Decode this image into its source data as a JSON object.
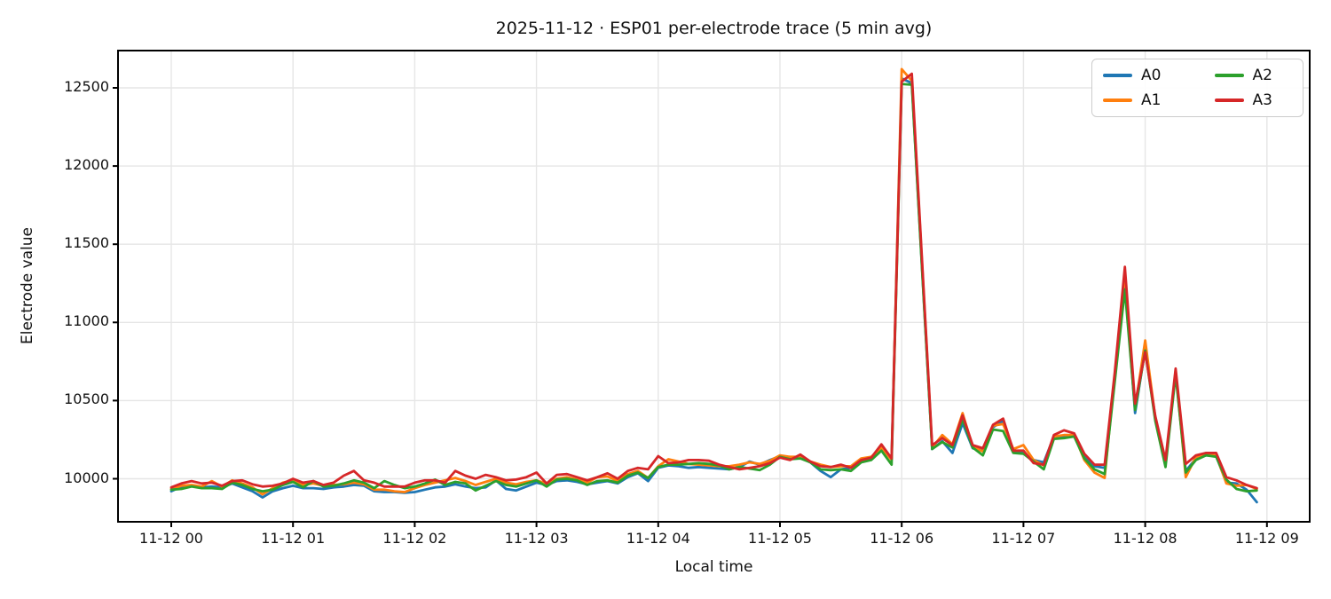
{
  "chart_data": {
    "type": "line",
    "title": "2025-11-12 · ESP01 per-electrode trace (5 min avg)",
    "xlabel": "Local time",
    "ylabel": "Electrode value",
    "grid": true,
    "legend_position": "upper right, 2 columns",
    "x_tick_labels": [
      "11-12 00",
      "11-12 01",
      "11-12 02",
      "11-12 03",
      "11-12 04",
      "11-12 05",
      "11-12 06",
      "11-12 07",
      "11-12 08",
      "11-12 09"
    ],
    "x_tick_minutes": [
      0,
      60,
      120,
      180,
      240,
      300,
      360,
      420,
      480,
      540
    ],
    "y_ticks": [
      10000,
      10500,
      11000,
      11500,
      12000,
      12500
    ],
    "ylim": [
      9725,
      12740
    ],
    "xlim_minutes": [
      -26,
      561
    ],
    "colors": {
      "grid": "#e6e6e6",
      "spine": "#000000",
      "text": "#111111"
    },
    "x_minutes": [
      0,
      5,
      10,
      15,
      20,
      25,
      30,
      35,
      40,
      45,
      50,
      55,
      60,
      65,
      70,
      75,
      80,
      85,
      90,
      95,
      100,
      105,
      110,
      115,
      120,
      125,
      130,
      135,
      140,
      145,
      150,
      155,
      160,
      165,
      170,
      175,
      180,
      185,
      190,
      195,
      200,
      205,
      210,
      215,
      220,
      225,
      230,
      235,
      240,
      245,
      250,
      255,
      260,
      265,
      270,
      275,
      280,
      285,
      290,
      295,
      300,
      305,
      310,
      315,
      320,
      325,
      330,
      335,
      340,
      345,
      350,
      355,
      360,
      365,
      370,
      375,
      380,
      385,
      390,
      395,
      400,
      405,
      410,
      415,
      420,
      425,
      430,
      435,
      440,
      445,
      450,
      455,
      460,
      465,
      470,
      475,
      480,
      485,
      490,
      495,
      500,
      505,
      510,
      515,
      520,
      525,
      530,
      535
    ],
    "series": [
      {
        "name": "A0",
        "color": "#1f77b4",
        "values": [
          9920,
          9950,
          9955,
          9945,
          9950,
          9945,
          9970,
          9945,
          9920,
          9880,
          9920,
          9940,
          9955,
          9940,
          9940,
          9935,
          9945,
          9950,
          9960,
          9955,
          9920,
          9915,
          9915,
          9910,
          9915,
          9930,
          9945,
          9950,
          9965,
          9950,
          9940,
          9945,
          9990,
          9935,
          9925,
          9950,
          9975,
          9960,
          9985,
          9990,
          9980,
          9965,
          9975,
          9985,
          9970,
          10010,
          10035,
          9985,
          10070,
          10085,
          10080,
          10070,
          10075,
          10070,
          10065,
          10060,
          10075,
          10110,
          10090,
          10120,
          10145,
          10130,
          10135,
          10105,
          10050,
          10010,
          10060,
          10070,
          10110,
          10135,
          10185,
          10140,
          12560,
          12530,
          11350,
          10190,
          10240,
          10165,
          10355,
          10195,
          10180,
          10330,
          10370,
          10170,
          10165,
          10120,
          10105,
          10270,
          10270,
          10275,
          10140,
          10080,
          10070,
          10650,
          11280,
          10420,
          10830,
          10380,
          10095,
          10680,
          10050,
          10130,
          10150,
          10145,
          9975,
          9970,
          9930,
          9850
        ]
      },
      {
        "name": "A1",
        "color": "#ff7f0e",
        "values": [
          9935,
          9955,
          9960,
          9950,
          9985,
          9950,
          9990,
          9970,
          9945,
          9900,
          9940,
          9975,
          9990,
          9960,
          9970,
          9955,
          9960,
          9965,
          9975,
          9965,
          9930,
          9930,
          9920,
          9915,
          9940,
          9960,
          9975,
          9990,
          10005,
          9985,
          9960,
          9980,
          10000,
          9975,
          9965,
          9980,
          9990,
          9970,
          10000,
          10010,
          9995,
          9975,
          10010,
          10015,
          9985,
          10030,
          10050,
          10005,
          10080,
          10125,
          10110,
          10095,
          10090,
          10085,
          10080,
          10080,
          10090,
          10105,
          10095,
          10115,
          10150,
          10140,
          10140,
          10110,
          10090,
          10075,
          10080,
          10080,
          10130,
          10140,
          10200,
          10120,
          12620,
          12545,
          11380,
          10200,
          10280,
          10220,
          10420,
          10205,
          10175,
          10340,
          10350,
          10190,
          10215,
          10120,
          10085,
          10270,
          10280,
          10280,
          10120,
          10040,
          10005,
          10660,
          11320,
          10450,
          10885,
          10390,
          10090,
          10690,
          10010,
          10140,
          10155,
          10150,
          9970,
          9955,
          9960,
          9935
        ]
      },
      {
        "name": "A2",
        "color": "#2ca02c",
        "values": [
          9930,
          9935,
          9950,
          9940,
          9940,
          9935,
          9975,
          9960,
          9935,
          9920,
          9930,
          9960,
          9980,
          9945,
          9985,
          9950,
          9955,
          9970,
          9990,
          9975,
          9940,
          9985,
          9960,
          9940,
          9950,
          9970,
          9995,
          9960,
          9980,
          9970,
          9925,
          9955,
          9985,
          9960,
          9950,
          9970,
          9990,
          9950,
          9995,
          10000,
          9990,
          9960,
          9985,
          9990,
          9975,
          10020,
          10040,
          10005,
          10075,
          10090,
          10090,
          10095,
          10100,
          10095,
          10085,
          10060,
          10075,
          10065,
          10055,
          10090,
          10140,
          10125,
          10130,
          10105,
          10060,
          10055,
          10060,
          10050,
          10105,
          10120,
          10180,
          10090,
          12525,
          12520,
          11340,
          10190,
          10235,
          10200,
          10380,
          10200,
          10150,
          10315,
          10305,
          10165,
          10160,
          10110,
          10060,
          10255,
          10260,
          10270,
          10130,
          10060,
          10030,
          10620,
          11210,
          10440,
          10820,
          10370,
          10075,
          10665,
          10040,
          10120,
          10150,
          10140,
          9995,
          9935,
          9920,
          9925
        ]
      },
      {
        "name": "A3",
        "color": "#d62728",
        "values": [
          9945,
          9970,
          9985,
          9970,
          9975,
          9955,
          9985,
          9990,
          9965,
          9950,
          9955,
          9970,
          10000,
          9975,
          9985,
          9960,
          9975,
          10020,
          10050,
          9990,
          9975,
          9950,
          9950,
          9950,
          9975,
          9990,
          9990,
          9975,
          10050,
          10020,
          10000,
          10025,
          10010,
          9990,
          9995,
          10010,
          10040,
          9970,
          10025,
          10030,
          10010,
          9990,
          10010,
          10035,
          10000,
          10050,
          10070,
          10060,
          10145,
          10100,
          10105,
          10120,
          10120,
          10115,
          10090,
          10075,
          10060,
          10070,
          10080,
          10100,
          10135,
          10120,
          10155,
          10110,
          10080,
          10075,
          10090,
          10070,
          10120,
          10135,
          10220,
          10130,
          12540,
          12590,
          11400,
          10215,
          10260,
          10215,
          10405,
          10215,
          10195,
          10345,
          10385,
          10180,
          10180,
          10100,
          10090,
          10280,
          10310,
          10290,
          10160,
          10090,
          10090,
          10680,
          11355,
          10480,
          10810,
          10400,
          10120,
          10705,
          10095,
          10150,
          10165,
          10165,
          10010,
          9990,
          9960,
          9940
        ]
      }
    ]
  }
}
